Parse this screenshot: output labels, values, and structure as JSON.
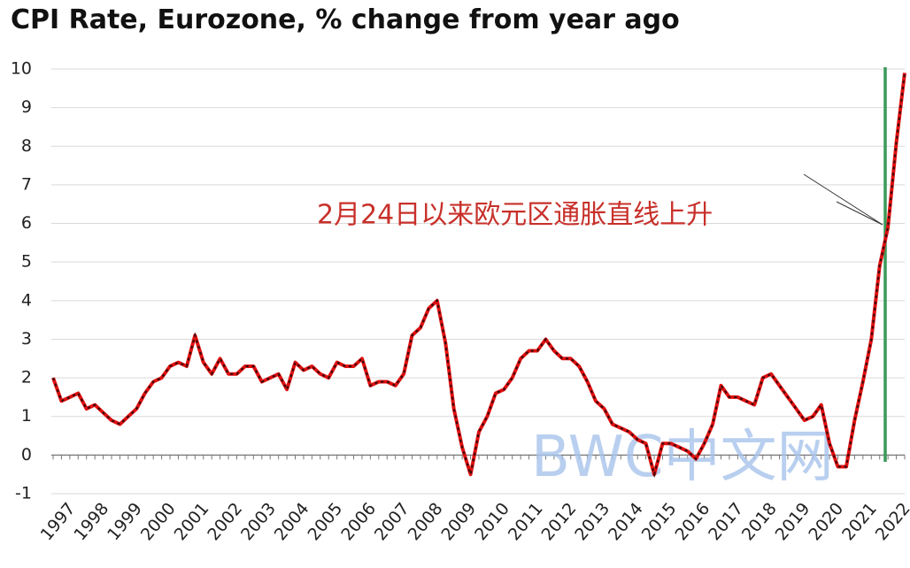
{
  "chart_data": {
    "type": "line",
    "title": "CPI Rate, Eurozone, % change from year ago",
    "categories": [
      "1997",
      null,
      null,
      null,
      "1998",
      null,
      null,
      null,
      "1999",
      null,
      null,
      null,
      "2000",
      null,
      null,
      null,
      "2001",
      null,
      null,
      null,
      "2002",
      null,
      null,
      null,
      "2003",
      null,
      null,
      null,
      "2004",
      null,
      null,
      null,
      "2005",
      null,
      null,
      null,
      "2006",
      null,
      null,
      null,
      "2007",
      null,
      null,
      null,
      "2008",
      null,
      null,
      null,
      "2009",
      null,
      null,
      null,
      "2010",
      null,
      null,
      null,
      "2011",
      null,
      null,
      null,
      "2012",
      null,
      null,
      null,
      "2013",
      null,
      null,
      null,
      "2014",
      null,
      null,
      null,
      "2015",
      null,
      null,
      null,
      "2016",
      null,
      null,
      null,
      "2017",
      null,
      null,
      null,
      "2018",
      null,
      null,
      null,
      "2019",
      null,
      null,
      null,
      "2020",
      null,
      null,
      null,
      "2021",
      null,
      null,
      null,
      "2022",
      null,
      null
    ],
    "values": [
      2.0,
      1.4,
      1.5,
      1.6,
      1.2,
      1.3,
      1.1,
      0.9,
      0.8,
      1.0,
      1.2,
      1.6,
      1.9,
      2.0,
      2.3,
      2.4,
      2.3,
      3.1,
      2.4,
      2.1,
      2.5,
      2.1,
      2.1,
      2.3,
      2.3,
      1.9,
      2.0,
      2.1,
      1.7,
      2.4,
      2.2,
      2.3,
      2.1,
      2.0,
      2.4,
      2.3,
      2.3,
      2.5,
      1.8,
      1.9,
      1.9,
      1.8,
      2.1,
      3.1,
      3.3,
      3.8,
      4.0,
      2.9,
      1.2,
      0.2,
      -0.5,
      0.6,
      1.0,
      1.6,
      1.7,
      2.0,
      2.5,
      2.7,
      2.7,
      3.0,
      2.7,
      2.5,
      2.5,
      2.3,
      1.9,
      1.4,
      1.2,
      0.8,
      0.7,
      0.6,
      0.4,
      0.3,
      -0.5,
      0.3,
      0.3,
      0.2,
      0.1,
      -0.1,
      0.3,
      0.8,
      1.8,
      1.5,
      1.5,
      1.4,
      1.3,
      2.0,
      2.1,
      1.8,
      1.5,
      1.2,
      0.9,
      1.0,
      1.3,
      0.3,
      -0.3,
      -0.3,
      0.9,
      1.9,
      3.0,
      4.9,
      5.9,
      8.1,
      9.9
    ],
    "color": "#e01010",
    "ylim": [
      -1,
      10
    ],
    "yticks": [
      -1,
      0,
      1,
      2,
      3,
      4,
      5,
      6,
      7,
      8,
      9,
      10
    ],
    "grid": true,
    "annotation": "2月24日以来欧元区通胀直线上升",
    "watermark": "BWC中文网"
  }
}
